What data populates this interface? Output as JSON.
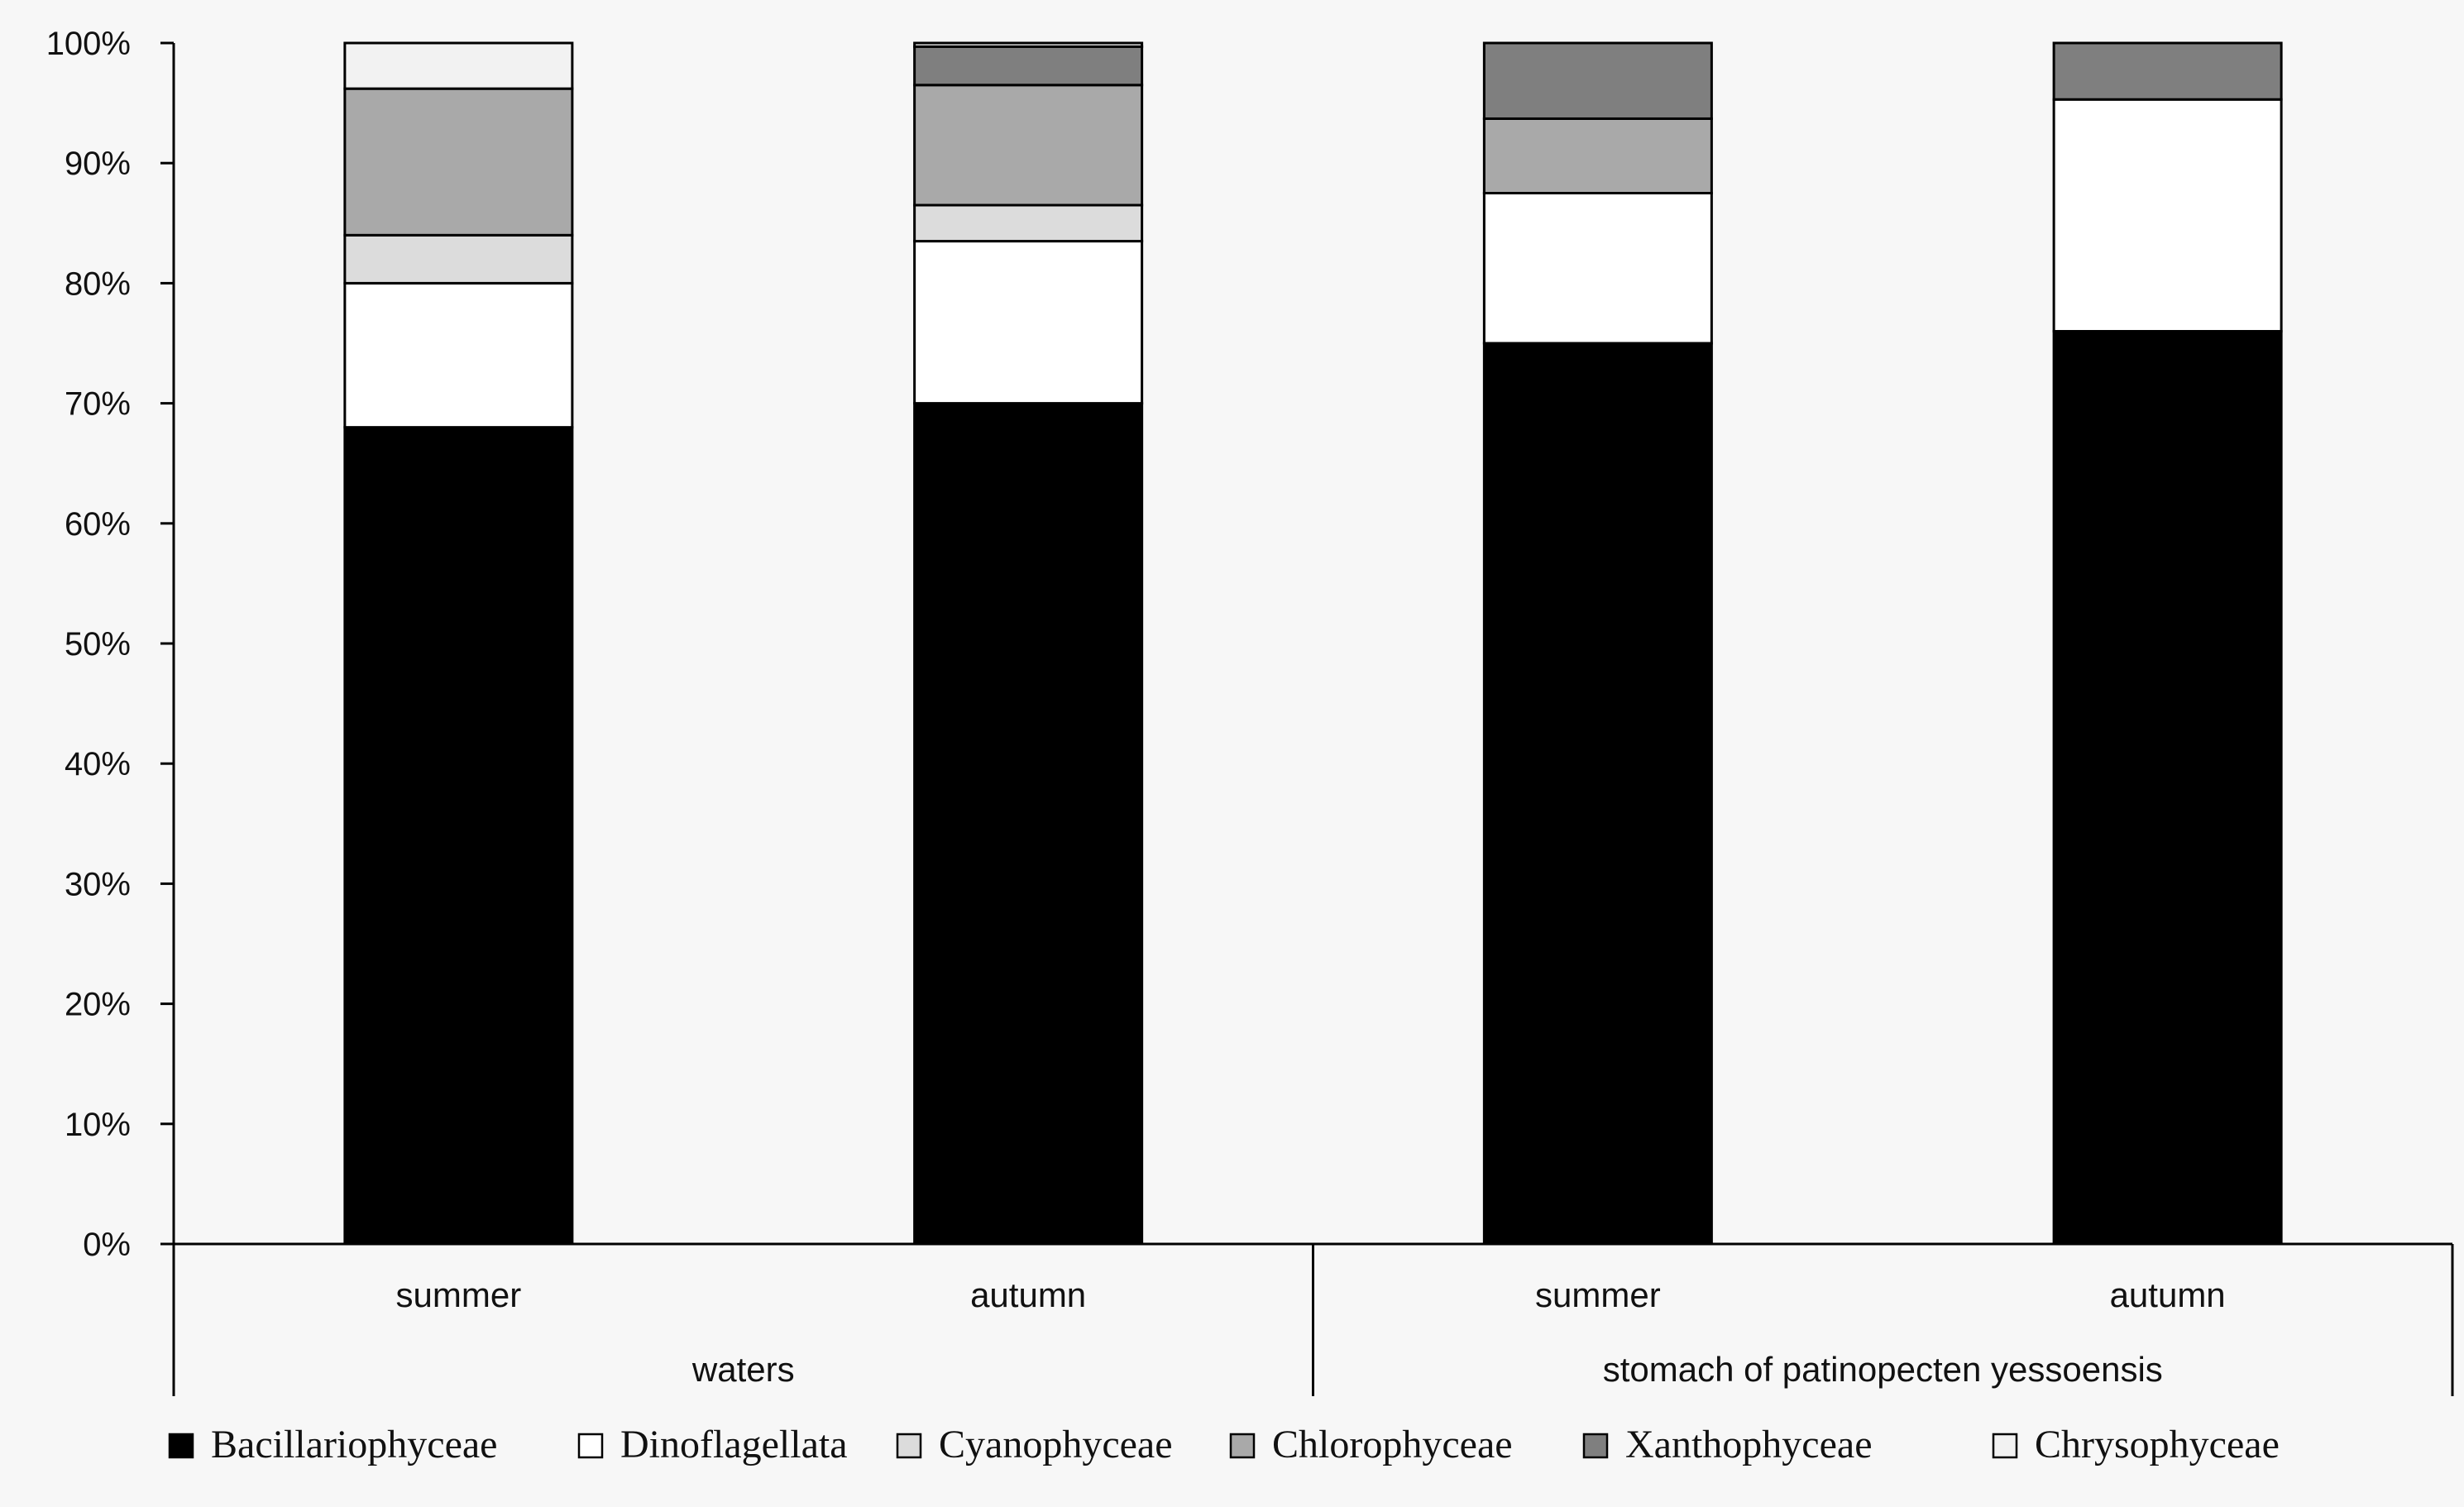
{
  "chart_data": {
    "type": "bar",
    "stacked": true,
    "percent": true,
    "categories": [
      "summer",
      "autumn",
      "summer",
      "autumn"
    ],
    "groups": [
      {
        "label": "waters",
        "categories": [
          0,
          1
        ]
      },
      {
        "label": "stomach of  patinopecten yessoensis",
        "categories": [
          2,
          3
        ]
      }
    ],
    "ylim": [
      0,
      100
    ],
    "yticks": [
      "0%",
      "10%",
      "20%",
      "30%",
      "40%",
      "50%",
      "60%",
      "70%",
      "80%",
      "90%",
      "100%"
    ],
    "series": [
      {
        "name": "Bacillariophyceae",
        "color": "#000000",
        "values": [
          68,
          70,
          75,
          76
        ]
      },
      {
        "name": "Dinoflagellata",
        "color": "#ffffff",
        "values": [
          12,
          13.5,
          12.5,
          19.3
        ]
      },
      {
        "name": "Cyanophyceae",
        "color": "#dcdcdc",
        "values": [
          4,
          3,
          0,
          0
        ]
      },
      {
        "name": "Chlorophyceae",
        "color": "#a9a9a9",
        "values": [
          12.2,
          10,
          6.2,
          0
        ]
      },
      {
        "name": "Xanthophyceae",
        "color": "#7f7f7f",
        "values": [
          0,
          3.2,
          6.3,
          4.7
        ]
      },
      {
        "name": "Chrysophyceae",
        "color": "#f2f2f2",
        "values": [
          3.8,
          0.3,
          0,
          0
        ]
      }
    ],
    "legend_position": "bottom",
    "grid": false
  }
}
